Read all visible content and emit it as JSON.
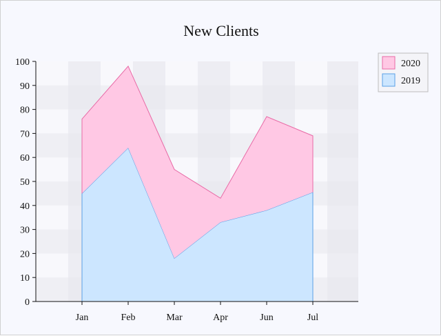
{
  "chart_data": {
    "type": "area",
    "stacked": true,
    "title": "New Clients",
    "xlabel": "",
    "ylabel": "",
    "categories": [
      "Jan",
      "Feb",
      "Mar",
      "Apr",
      "Jun",
      "Jul"
    ],
    "ylim": [
      0,
      100
    ],
    "yticks": [
      0,
      10,
      20,
      30,
      40,
      50,
      60,
      70,
      80,
      90,
      100
    ],
    "series": [
      {
        "name": "2019",
        "values": [
          45,
          64,
          18,
          33,
          38,
          45.5
        ],
        "fill": "#cce6ff",
        "stroke": "#5aa0e6"
      },
      {
        "name": "2020",
        "values": [
          31,
          34,
          37,
          10,
          39,
          23.5
        ],
        "fill": "#ffc8e4",
        "stroke": "#e86aa6"
      }
    ],
    "legend_position": "top-right",
    "grid": true
  }
}
